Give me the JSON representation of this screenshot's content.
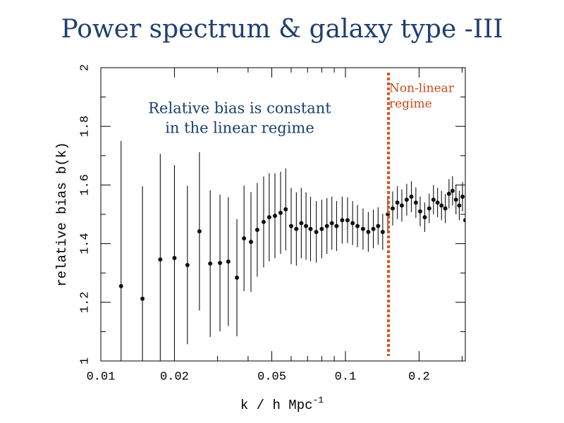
{
  "chart_data": {
    "type": "scatter",
    "title": "Power spectrum & galaxy type -III",
    "x_label": "k / h Mpc",
    "x_label_superscript": "-1",
    "y_label": "relative bias b(k)",
    "xlog": true,
    "xlim": [
      0.01,
      0.309
    ],
    "ylim": [
      1,
      2
    ],
    "xticks": [
      0.01,
      0.02,
      0.05,
      0.1,
      0.2
    ],
    "xminor": [
      0.03,
      0.04,
      0.06,
      0.07,
      0.08,
      0.09,
      0.3
    ],
    "yticks": [
      1,
      1.2,
      1.4,
      1.6,
      1.8,
      2
    ],
    "yminor": [
      1.1,
      1.3,
      1.5,
      1.7,
      1.9
    ],
    "color": "#111111",
    "x": [
      0.0121,
      0.0148,
      0.0175,
      0.02,
      0.0226,
      0.0253,
      0.028,
      0.0307,
      0.0332,
      0.036,
      0.0385,
      0.0411,
      0.0436,
      0.0463,
      0.0488,
      0.0515,
      0.0543,
      0.057,
      0.06,
      0.063,
      0.066,
      0.069,
      0.072,
      0.076,
      0.08,
      0.084,
      0.088,
      0.092,
      0.097,
      0.102,
      0.107,
      0.112,
      0.118,
      0.124,
      0.13,
      0.136,
      0.142,
      0.149,
      0.156,
      0.163,
      0.17,
      0.178,
      0.186,
      0.194,
      0.202,
      0.211,
      0.22,
      0.229,
      0.238,
      0.247,
      0.256,
      0.265,
      0.274,
      0.283,
      0.292,
      0.301,
      0.309
    ],
    "values": [
      1.255,
      1.212,
      1.346,
      1.351,
      1.327,
      1.442,
      1.332,
      1.334,
      1.339,
      1.284,
      1.418,
      1.406,
      1.447,
      1.474,
      1.49,
      1.495,
      1.505,
      1.517,
      1.46,
      1.45,
      1.47,
      1.46,
      1.45,
      1.44,
      1.45,
      1.46,
      1.47,
      1.46,
      1.48,
      1.48,
      1.47,
      1.46,
      1.45,
      1.44,
      1.45,
      1.46,
      1.44,
      1.5,
      1.52,
      1.54,
      1.53,
      1.55,
      1.56,
      1.54,
      1.51,
      1.49,
      1.52,
      1.55,
      1.54,
      1.53,
      1.52,
      1.57,
      1.58,
      1.55,
      1.53,
      1.56,
      1.48
    ],
    "errors": [
      0.495,
      0.384,
      0.36,
      0.317,
      0.27,
      0.27,
      0.25,
      0.233,
      0.22,
      0.2,
      0.18,
      0.17,
      0.16,
      0.155,
      0.15,
      0.145,
      0.14,
      0.14,
      0.13,
      0.125,
      0.12,
      0.115,
      0.11,
      0.105,
      0.1,
      0.095,
      0.09,
      0.085,
      0.08,
      0.078,
      0.075,
      0.072,
      0.07,
      0.068,
      0.066,
      0.064,
      0.062,
      0.06,
      0.058,
      0.056,
      0.055,
      0.054,
      0.053,
      0.052,
      0.051,
      0.05,
      0.05,
      0.05,
      0.05,
      0.05,
      0.05,
      0.05,
      0.05,
      0.05,
      0.05,
      0.05,
      0.05
    ],
    "vline": {
      "x": 0.15,
      "color": "#d9531e"
    },
    "annotations": [
      {
        "lines": [
          "Relative bias is constant",
          "in the linear regime"
        ],
        "color": "#17406d"
      },
      {
        "lines": [
          "Non-linear",
          "regime"
        ],
        "color": "#c8491a"
      }
    ]
  }
}
